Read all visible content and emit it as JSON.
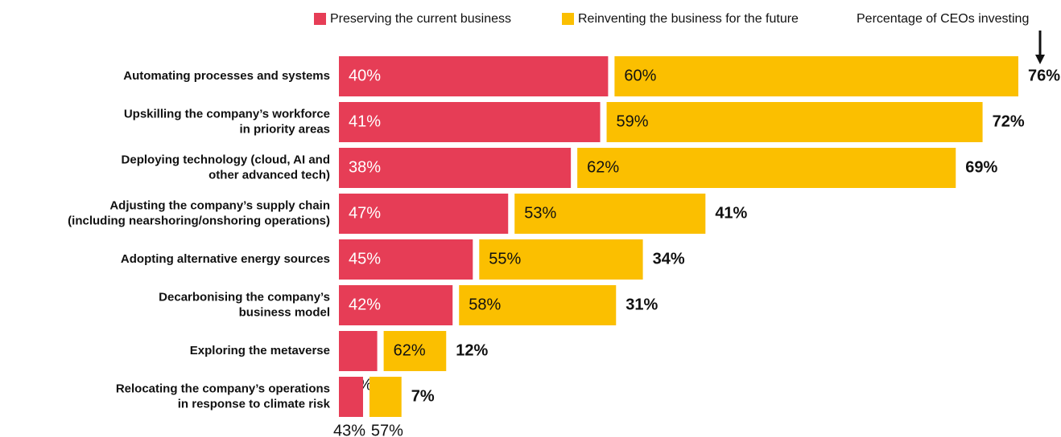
{
  "chart_data": {
    "type": "bar",
    "orientation": "horizontal",
    "categories": [
      [
        "Automating processes and systems"
      ],
      [
        "Upskilling the company’s workforce",
        "in priority areas"
      ],
      [
        "Deploying technology (cloud, AI and",
        "other advanced tech)"
      ],
      [
        "Adjusting the company’s supply chain",
        "(including nearshoring/onshoring operations)"
      ],
      [
        "Adopting alternative energy sources"
      ],
      [
        "Decarbonising the company’s",
        "business model"
      ],
      [
        "Exploring the metaverse"
      ],
      [
        "Relocating the company’s operations",
        "in response to climate risk"
      ]
    ],
    "series": [
      {
        "name": "Preserving the current business",
        "color": "#e63d56",
        "values": [
          40,
          41,
          38,
          47,
          45,
          42,
          38,
          43
        ],
        "value_labels": [
          "40%",
          "41%",
          "38%",
          "47%",
          "45%",
          "42%",
          "38%",
          "43%"
        ]
      },
      {
        "name": "Reinventing the business for the future",
        "color": "#fbbf00",
        "values": [
          60,
          59,
          62,
          53,
          55,
          58,
          62,
          57
        ],
        "value_labels": [
          "60%",
          "59%",
          "62%",
          "53%",
          "55%",
          "58%",
          "62%",
          "57%"
        ]
      }
    ],
    "totals": {
      "name": "Percentage of CEOs investing",
      "values": [
        76,
        72,
        69,
        41,
        34,
        31,
        12,
        7
      ],
      "value_labels": [
        "76%",
        "72%",
        "69%",
        "41%",
        "34%",
        "31%",
        "12%",
        "7%"
      ]
    }
  }
}
